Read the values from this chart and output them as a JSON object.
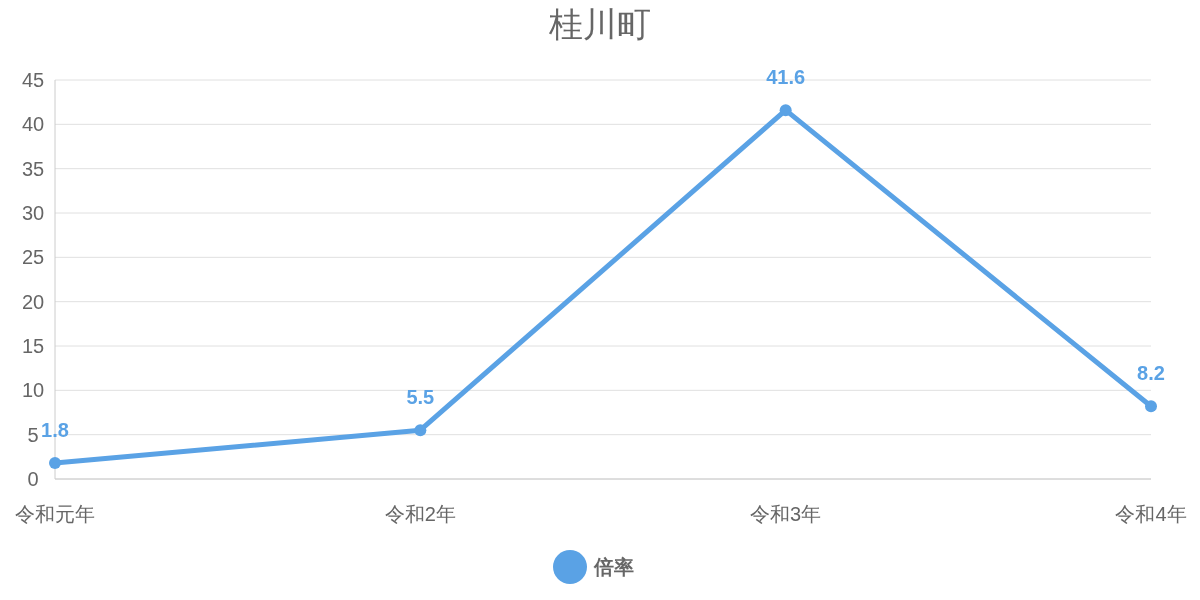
{
  "chart_data": {
    "type": "line",
    "title": "桂川町",
    "categories": [
      "令和元年",
      "令和2年",
      "令和3年",
      "令和4年"
    ],
    "series": [
      {
        "name": "倍率",
        "color": "#5aa2e5",
        "values": [
          1.8,
          5.5,
          41.6,
          8.2
        ]
      }
    ],
    "ylim": [
      0,
      45
    ],
    "yticks": [
      0,
      5,
      10,
      15,
      20,
      25,
      30,
      35,
      40,
      45
    ],
    "grid": "y",
    "legend": "bottom",
    "marker": "circle",
    "data_labels": true
  }
}
